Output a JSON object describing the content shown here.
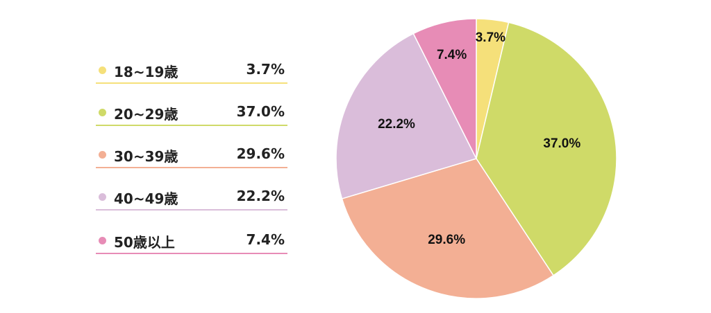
{
  "chart_data": {
    "type": "pie",
    "categories": [
      "18~19歳",
      "20~29歳",
      "30~39歳",
      "40~49歳",
      "50歳以上"
    ],
    "values": [
      3.7,
      37.0,
      29.6,
      22.2,
      7.4
    ],
    "value_labels": [
      "3.7%",
      "37.0%",
      "29.6%",
      "22.2%",
      "7.4%"
    ],
    "colors": [
      "#f5e07a",
      "#cfda68",
      "#f3af94",
      "#dabdda",
      "#e78cb6"
    ],
    "start_angle": "12 o'clock",
    "direction": "clockwise",
    "legend_placement": "left"
  }
}
